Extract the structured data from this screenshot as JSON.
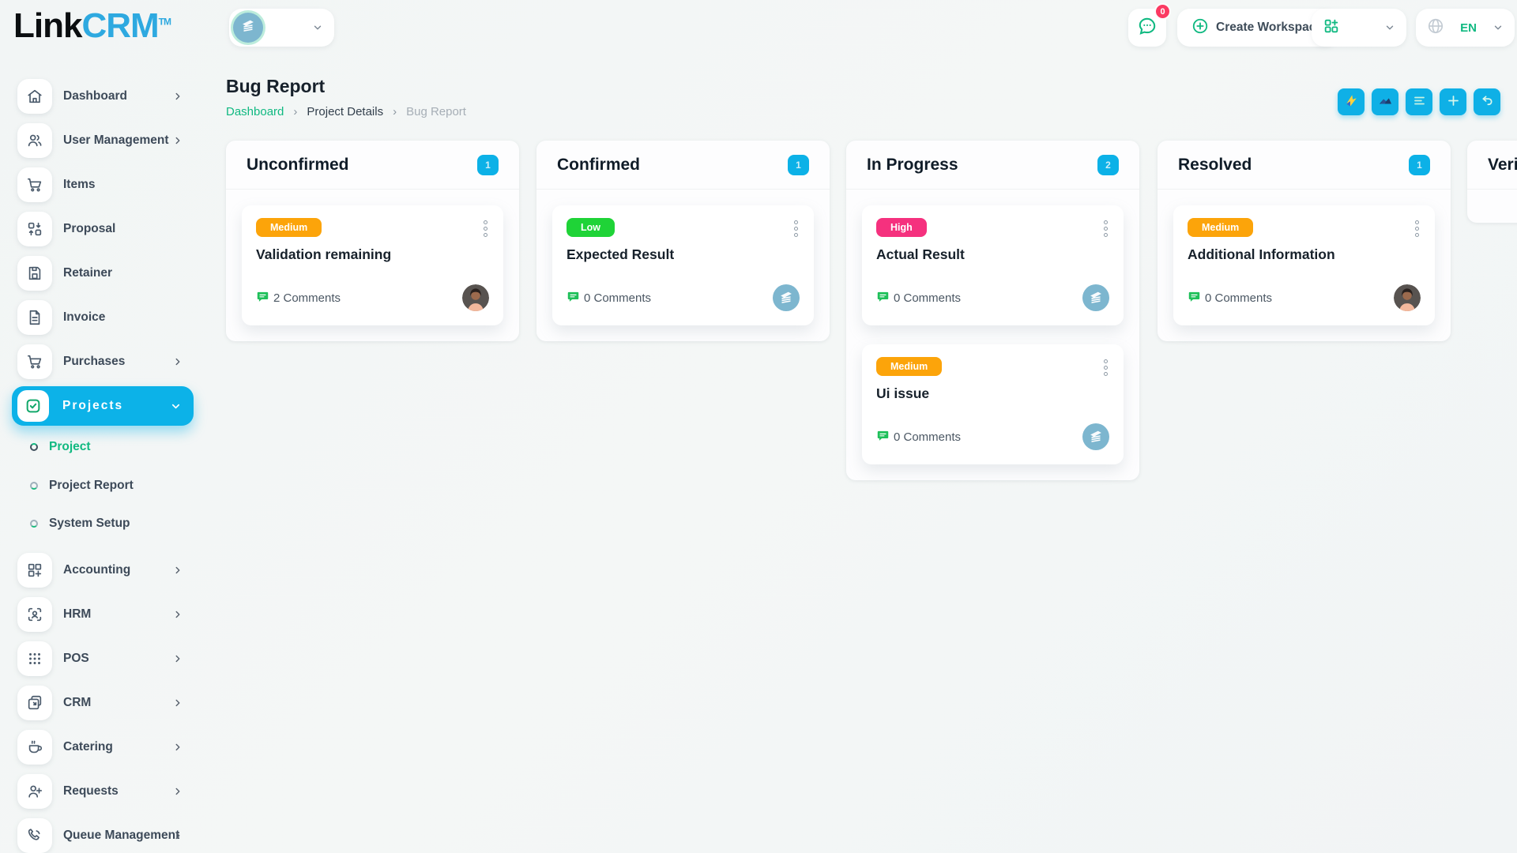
{
  "brand": {
    "link": "Link",
    "crm": "CRM",
    "tm": "TM"
  },
  "colors": {
    "accent_cyan": "#0cb2e8",
    "accent_green": "#10b981",
    "badge_red": "#fb3a62",
    "priority_medium": "#fca40a",
    "priority_low": "#1fd337",
    "priority_high": "#f5317e"
  },
  "topbar": {
    "workspace_selector_icon": "building-icon",
    "chat_badge": "0",
    "create_workspace_label": "Create Workspace",
    "language": "EN"
  },
  "sidebar": {
    "items": [
      {
        "label": "Dashboard",
        "icon": "home-icon",
        "chevron": true
      },
      {
        "label": "User Management",
        "icon": "users-icon",
        "chevron": true
      },
      {
        "label": "Items",
        "icon": "cart-icon",
        "chevron": false
      },
      {
        "label": "Proposal",
        "icon": "proposal-icon",
        "chevron": false
      },
      {
        "label": "Retainer",
        "icon": "retainer-icon",
        "chevron": false
      },
      {
        "label": "Invoice",
        "icon": "invoice-icon",
        "chevron": false
      },
      {
        "label": "Purchases",
        "icon": "purchases-icon",
        "chevron": true
      },
      {
        "label": "Projects",
        "icon": "projects-icon",
        "chevron": "down",
        "active": true,
        "children": [
          {
            "label": "Project",
            "active": true
          },
          {
            "label": "Project Report",
            "active": false
          },
          {
            "label": "System Setup",
            "active": false
          }
        ]
      },
      {
        "label": "Accounting",
        "icon": "accounting-icon",
        "chevron": true
      },
      {
        "label": "HRM",
        "icon": "hrm-icon",
        "chevron": true
      },
      {
        "label": "POS",
        "icon": "pos-icon",
        "chevron": true
      },
      {
        "label": "CRM",
        "icon": "crm-icon",
        "chevron": true
      },
      {
        "label": "Catering",
        "icon": "catering-icon",
        "chevron": true
      },
      {
        "label": "Requests",
        "icon": "requests-icon",
        "chevron": true
      },
      {
        "label": "Queue Management",
        "icon": "queue-icon",
        "chevron": true
      }
    ]
  },
  "page": {
    "title": "Bug Report",
    "breadcrumb": [
      "Dashboard",
      "Project Details",
      "Bug Report"
    ],
    "toolbar_icons": [
      "send-icon",
      "mountain-icon",
      "list-icon",
      "plus-icon",
      "undo-icon"
    ]
  },
  "board": {
    "columns": [
      {
        "title": "Unconfirmed",
        "count": "1",
        "cards": [
          {
            "priority": "Medium",
            "priority_key": "medium",
            "title": "Validation remaining",
            "comments_label": "2 Comments",
            "avatar": "photo"
          }
        ]
      },
      {
        "title": "Confirmed",
        "count": "1",
        "cards": [
          {
            "priority": "Low",
            "priority_key": "low",
            "title": "Expected Result",
            "comments_label": "0 Comments",
            "avatar": "building"
          }
        ]
      },
      {
        "title": "In Progress",
        "count": "2",
        "cards": [
          {
            "priority": "High",
            "priority_key": "high",
            "title": "Actual Result",
            "comments_label": "0 Comments",
            "avatar": "building"
          },
          {
            "priority": "Medium",
            "priority_key": "medium",
            "title": "Ui issue",
            "comments_label": "0 Comments",
            "avatar": "building"
          }
        ]
      },
      {
        "title": "Resolved",
        "count": "1",
        "cards": [
          {
            "priority": "Medium",
            "priority_key": "medium",
            "title": "Additional Information",
            "comments_label": "0 Comments",
            "avatar": "photo"
          }
        ]
      },
      {
        "title": "Verified",
        "count": "",
        "cards": []
      }
    ]
  }
}
